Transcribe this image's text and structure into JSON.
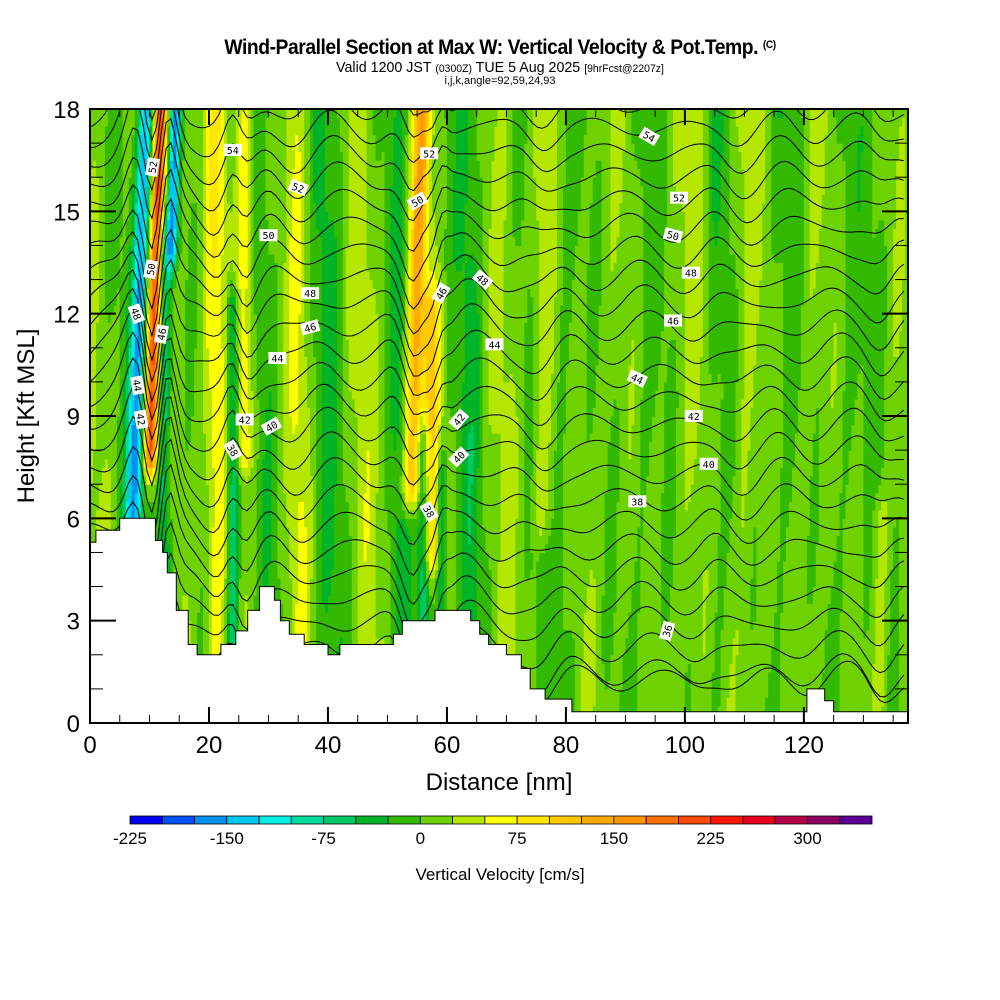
{
  "header": {
    "title": "Wind-Parallel Section at Max W: Vertical Velocity & Pot.Temp.",
    "title_mark": "(C)",
    "valid_prefix": "Valid 1200 JST",
    "valid_utc": "(0300Z)",
    "valid_date": "TUE 5 Aug 2025",
    "forecast": "[9hrFcst@2207z]",
    "grid_info": "i,j,k,angle=92,59,24,93"
  },
  "chart_data": {
    "type": "heatmap",
    "title": "Wind-Parallel Section at Max W: Vertical Velocity & Pot.Temp.",
    "xlabel": "Distance [nm]",
    "ylabel": "Height [Kft MSL]",
    "xlim": [
      0,
      137.5
    ],
    "ylim": [
      0,
      18
    ],
    "xticks": [
      0,
      20,
      40,
      60,
      80,
      100,
      120
    ],
    "yticks": [
      0,
      3,
      6,
      9,
      12,
      15,
      18
    ],
    "x_minor_step": 5,
    "y_minor_step": 1,
    "colorbar": {
      "title": "Vertical Velocity [cm/s]",
      "levels": [
        -225,
        -200,
        -175,
        -150,
        -125,
        -100,
        -75,
        -50,
        -25,
        0,
        25,
        50,
        75,
        100,
        125,
        150,
        175,
        200,
        225,
        250,
        275,
        300,
        325,
        350
      ],
      "tick_labels": [
        -225,
        -150,
        -75,
        0,
        75,
        150,
        225,
        300
      ],
      "colors": [
        "#0000f0",
        "#0050f5",
        "#0090f0",
        "#00c8f5",
        "#00f0e6",
        "#00dca0",
        "#00c864",
        "#00b428",
        "#32b900",
        "#6ed200",
        "#b4e600",
        "#ffff00",
        "#ffe600",
        "#ffc800",
        "#ffaa00",
        "#ff9600",
        "#ff7000",
        "#ff4b00",
        "#ff1400",
        "#e6001e",
        "#b40046",
        "#8c0064",
        "#5a0096"
      ]
    },
    "velocity_bands": [
      {
        "x": 0,
        "v": 10,
        "half_width": 5.0
      },
      {
        "x": 8,
        "v": -160,
        "half_width": 1.4,
        "top": 18,
        "bottom": 5.3
      },
      {
        "x": 10.5,
        "v": 200,
        "half_width": 1.2,
        "top": 18,
        "bottom": 8
      },
      {
        "x": 13,
        "v": -150,
        "half_width": 1.0,
        "top": 18,
        "bottom": 14
      },
      {
        "x": 12.5,
        "v": -85,
        "half_width": 1.2,
        "top": 14,
        "bottom": 2
      },
      {
        "x": 16,
        "v": 15,
        "half_width": 2.5
      },
      {
        "x": 21,
        "v": 55,
        "half_width": 2.0
      },
      {
        "x": 24,
        "v": -90,
        "half_width": 1.0,
        "top": 12,
        "bottom": 2
      },
      {
        "x": 26,
        "v": 65,
        "half_width": 1.5,
        "top": 18,
        "bottom": 8
      },
      {
        "x": 30,
        "v": -10,
        "half_width": 2.0
      },
      {
        "x": 35,
        "v": 35,
        "half_width": 2.0
      },
      {
        "x": 40,
        "v": -25,
        "half_width": 2.5
      },
      {
        "x": 46,
        "v": 20,
        "half_width": 3.0
      },
      {
        "x": 52,
        "v": -30,
        "half_width": 1.5
      },
      {
        "x": 54.5,
        "v": 130,
        "half_width": 1.5,
        "top": 18,
        "bottom": 7
      },
      {
        "x": 56,
        "v": -80,
        "half_width": 1.0,
        "top": 8,
        "bottom": 1.5
      },
      {
        "x": 57.5,
        "v": 80,
        "half_width": 1.5,
        "top": 12,
        "bottom": 5
      },
      {
        "x": 59,
        "v": -75,
        "half_width": 0.8,
        "top": 7,
        "bottom": 1.5
      },
      {
        "x": 64,
        "v": -30,
        "half_width": 2.0
      },
      {
        "x": 70,
        "v": 15,
        "half_width": 2.5
      },
      {
        "x": 76,
        "v": 40,
        "half_width": 1.8,
        "top": 18,
        "bottom": 6
      },
      {
        "x": 80,
        "v": -20,
        "half_width": 2.0
      },
      {
        "x": 86,
        "v": 15,
        "half_width": 3.0
      },
      {
        "x": 93,
        "v": -15,
        "half_width": 2.0
      },
      {
        "x": 100,
        "v": 20,
        "half_width": 3.0
      },
      {
        "x": 105,
        "v": -20,
        "half_width": 1.5
      },
      {
        "x": 110,
        "v": 30,
        "half_width": 2.0
      },
      {
        "x": 116,
        "v": -15,
        "half_width": 2.0
      },
      {
        "x": 121,
        "v": 20,
        "half_width": 2.0
      },
      {
        "x": 127,
        "v": -15,
        "half_width": 2.0
      },
      {
        "x": 133,
        "v": 40,
        "half_width": 1.5,
        "top": 6,
        "bottom": 0.5
      }
    ],
    "terrain": [
      [
        0,
        5.3
      ],
      [
        1,
        5.3
      ],
      [
        1,
        5.65
      ],
      [
        5,
        5.65
      ],
      [
        5,
        6.0
      ],
      [
        11,
        6.0
      ],
      [
        11,
        5.35
      ],
      [
        12.2,
        5.35
      ],
      [
        12.2,
        5.0
      ],
      [
        13,
        5.0
      ],
      [
        13,
        4.4
      ],
      [
        14.5,
        4.4
      ],
      [
        14.5,
        3.3
      ],
      [
        16.5,
        3.3
      ],
      [
        16.5,
        2.3
      ],
      [
        18,
        2.3
      ],
      [
        18,
        2.0
      ],
      [
        22,
        2.0
      ],
      [
        22,
        2.3
      ],
      [
        24.5,
        2.3
      ],
      [
        24.5,
        2.7
      ],
      [
        26.5,
        2.7
      ],
      [
        26.5,
        3.3
      ],
      [
        28.5,
        3.3
      ],
      [
        28.5,
        4.0
      ],
      [
        31,
        4.0
      ],
      [
        31,
        3.6
      ],
      [
        32,
        3.6
      ],
      [
        32,
        3.0
      ],
      [
        33.5,
        3.0
      ],
      [
        33.5,
        2.6
      ],
      [
        36,
        2.6
      ],
      [
        36,
        2.3
      ],
      [
        40,
        2.3
      ],
      [
        40,
        2.0
      ],
      [
        42,
        2.0
      ],
      [
        42,
        2.3
      ],
      [
        51,
        2.3
      ],
      [
        51,
        2.6
      ],
      [
        52.5,
        2.6
      ],
      [
        52.5,
        3.0
      ],
      [
        58,
        3.0
      ],
      [
        58,
        3.3
      ],
      [
        64,
        3.3
      ],
      [
        64,
        3.0
      ],
      [
        65.5,
        3.0
      ],
      [
        65.5,
        2.6
      ],
      [
        67,
        2.6
      ],
      [
        67,
        2.3
      ],
      [
        70,
        2.3
      ],
      [
        70,
        2.0
      ],
      [
        72.5,
        2.0
      ],
      [
        72.5,
        1.6
      ],
      [
        74,
        1.6
      ],
      [
        74,
        1.0
      ],
      [
        76.5,
        1.0
      ],
      [
        76.5,
        0.7
      ],
      [
        81,
        0.7
      ],
      [
        81,
        0.33
      ],
      [
        120.5,
        0.33
      ],
      [
        120.5,
        1.0
      ],
      [
        123.5,
        1.0
      ],
      [
        123.5,
        0.65
      ],
      [
        125,
        0.65
      ],
      [
        125,
        0.33
      ],
      [
        137.5,
        0.33
      ]
    ],
    "theta_contours": [
      {
        "value": 36,
        "label_at": [
          97,
          2.7
        ]
      },
      {
        "value": 38,
        "label_at": [
          92,
          6.5
        ]
      },
      {
        "value": 40,
        "label_at": [
          104,
          7.6
        ]
      },
      {
        "value": 42,
        "label_at": [
          101,
          9.0
        ]
      },
      {
        "value": 44,
        "label_at": [
          92,
          10.1
        ]
      },
      {
        "value": 46,
        "label_at": [
          98,
          11.8
        ]
      },
      {
        "value": 48,
        "label_at": [
          101,
          13.2
        ]
      },
      {
        "value": 50,
        "label_at": [
          98,
          14.4
        ]
      },
      {
        "value": 52,
        "label_at": [
          99,
          15.4
        ]
      },
      {
        "value": 54,
        "label_at": [
          94,
          17.2
        ]
      }
    ],
    "contour_labels": [
      {
        "text": "52",
        "x": 10.5,
        "y": 16.3,
        "angle": -80
      },
      {
        "text": "50",
        "x": 10.2,
        "y": 13.3,
        "angle": -80
      },
      {
        "text": "48",
        "x": 7.8,
        "y": 12.0,
        "angle": 70
      },
      {
        "text": "46",
        "x": 12.0,
        "y": 11.4,
        "angle": -80
      },
      {
        "text": "44",
        "x": 8.0,
        "y": 9.9,
        "angle": 80
      },
      {
        "text": "42",
        "x": 8.6,
        "y": 8.9,
        "angle": 80
      },
      {
        "text": "54",
        "x": 24.0,
        "y": 16.8,
        "angle": 0
      },
      {
        "text": "52",
        "x": 35.0,
        "y": 15.7,
        "angle": 20
      },
      {
        "text": "50",
        "x": 30.0,
        "y": 14.3,
        "angle": 0
      },
      {
        "text": "48",
        "x": 37.0,
        "y": 12.6,
        "angle": 0
      },
      {
        "text": "46",
        "x": 37.0,
        "y": 11.6,
        "angle": -15
      },
      {
        "text": "44",
        "x": 31.5,
        "y": 10.7,
        "angle": 0
      },
      {
        "text": "42",
        "x": 26.0,
        "y": 8.9,
        "angle": 0
      },
      {
        "text": "40",
        "x": 30.5,
        "y": 8.7,
        "angle": -30
      },
      {
        "text": "38",
        "x": 24.0,
        "y": 8.0,
        "angle": 60
      },
      {
        "text": "52",
        "x": 57.0,
        "y": 16.7,
        "angle": 0
      },
      {
        "text": "50",
        "x": 55.0,
        "y": 15.3,
        "angle": -30
      },
      {
        "text": "48",
        "x": 66.0,
        "y": 13.0,
        "angle": 40
      },
      {
        "text": "46",
        "x": 59.0,
        "y": 12.6,
        "angle": -60
      },
      {
        "text": "44",
        "x": 68.0,
        "y": 11.1,
        "angle": 0
      },
      {
        "text": "42",
        "x": 62.0,
        "y": 8.9,
        "angle": -50
      },
      {
        "text": "40",
        "x": 62.0,
        "y": 7.8,
        "angle": -45
      },
      {
        "text": "38",
        "x": 57.0,
        "y": 6.2,
        "angle": 60
      },
      {
        "text": "54",
        "x": 94.0,
        "y": 17.2,
        "angle": 30
      },
      {
        "text": "52",
        "x": 99.0,
        "y": 15.4,
        "angle": 0
      },
      {
        "text": "50",
        "x": 98.0,
        "y": 14.3,
        "angle": 15
      },
      {
        "text": "48",
        "x": 101.0,
        "y": 13.2,
        "angle": 0
      },
      {
        "text": "46",
        "x": 98.0,
        "y": 11.8,
        "angle": 0
      },
      {
        "text": "44",
        "x": 92.0,
        "y": 10.1,
        "angle": 25
      },
      {
        "text": "42",
        "x": 101.5,
        "y": 9.0,
        "angle": 0
      },
      {
        "text": "40",
        "x": 104.0,
        "y": 7.6,
        "angle": 0
      },
      {
        "text": "38",
        "x": 92.0,
        "y": 6.5,
        "angle": 0
      },
      {
        "text": "36",
        "x": 97.0,
        "y": 2.7,
        "angle": -75
      }
    ]
  }
}
